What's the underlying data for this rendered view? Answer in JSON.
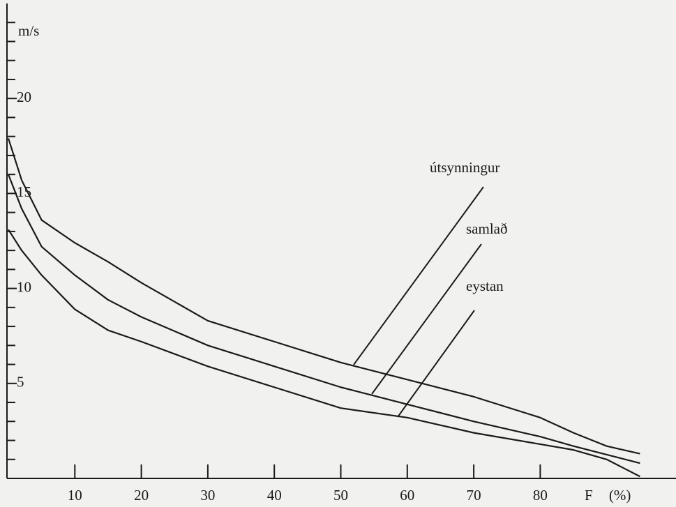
{
  "chart_data": {
    "type": "line",
    "y_label": "m/s",
    "x_label": "F (%)",
    "x": [
      0,
      2,
      5,
      10,
      15,
      20,
      30,
      40,
      50,
      60,
      70,
      80,
      85,
      90,
      95
    ],
    "series": [
      {
        "name": "útsynningur",
        "color": "#1a1a1a",
        "values": [
          17.9,
          15.7,
          13.6,
          12.4,
          11.4,
          10.3,
          8.3,
          7.2,
          6.1,
          5.2,
          4.3,
          3.2,
          2.4,
          1.7,
          1.3
        ]
      },
      {
        "name": "samlað",
        "color": "#1a1a1a",
        "values": [
          16.0,
          14.2,
          12.2,
          10.7,
          9.4,
          8.5,
          7.0,
          5.9,
          4.8,
          3.9,
          3.0,
          2.2,
          1.7,
          1.25,
          0.8
        ]
      },
      {
        "name": "eystan",
        "color": "#1a1a1a",
        "values": [
          13.1,
          12.0,
          10.7,
          8.9,
          7.8,
          7.2,
          5.9,
          4.8,
          3.7,
          3.2,
          2.4,
          1.8,
          1.5,
          1.0,
          0.1
        ]
      }
    ],
    "xlim": [
      0,
      100
    ],
    "xticks": [
      10,
      20,
      30,
      40,
      50,
      60,
      70,
      80
    ],
    "ylim": [
      0,
      25
    ],
    "yticks": [
      5,
      10,
      15,
      20
    ],
    "yminor_ticks": [
      1,
      2,
      3,
      4,
      6,
      7,
      8,
      9,
      11,
      12,
      13,
      14,
      16,
      17,
      18,
      19,
      21,
      22,
      23,
      24
    ],
    "grid": false
  }
}
